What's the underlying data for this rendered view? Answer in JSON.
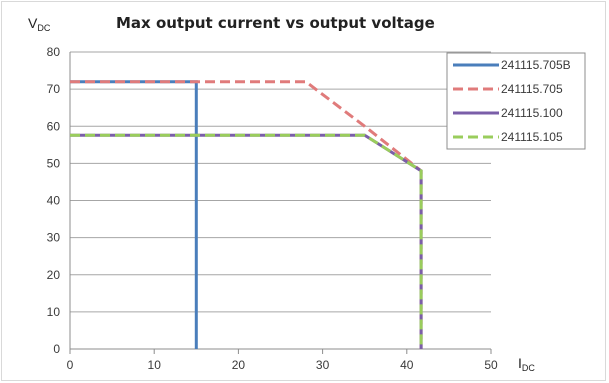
{
  "chart_data": {
    "type": "line",
    "title": "Max output current vs output voltage",
    "ylabel": {
      "main": "V",
      "sub": "DC"
    },
    "xlabel": {
      "main": "I",
      "sub": "DC"
    },
    "xlim": [
      0,
      50
    ],
    "ylim": [
      0,
      80
    ],
    "x_ticks": [
      0,
      10,
      20,
      30,
      40,
      50
    ],
    "y_ticks": [
      0,
      10,
      20,
      30,
      40,
      50,
      60,
      70,
      80
    ],
    "grid": "horizontal",
    "legend_position": "top-right",
    "series": [
      {
        "name": "241115.705B",
        "color": "#4a7ebb",
        "style": "solid",
        "points": [
          [
            0,
            72
          ],
          [
            15,
            72
          ],
          [
            15,
            0
          ]
        ]
      },
      {
        "name": "241115.705",
        "color": "#e07b7b",
        "style": "dashed",
        "points": [
          [
            0,
            72
          ],
          [
            28,
            72
          ],
          [
            35,
            60
          ],
          [
            41.7,
            48
          ],
          [
            41.7,
            0
          ]
        ]
      },
      {
        "name": "241115.100",
        "color": "#7a5ea8",
        "style": "solid",
        "points": [
          [
            0,
            57.6
          ],
          [
            35,
            57.6
          ],
          [
            41.7,
            48
          ],
          [
            41.7,
            0
          ]
        ]
      },
      {
        "name": "241115.105",
        "color": "#9acd5c",
        "style": "dashed",
        "points": [
          [
            0,
            57.6
          ],
          [
            35,
            57.6
          ],
          [
            41.7,
            48
          ],
          [
            41.7,
            0
          ]
        ]
      }
    ]
  }
}
